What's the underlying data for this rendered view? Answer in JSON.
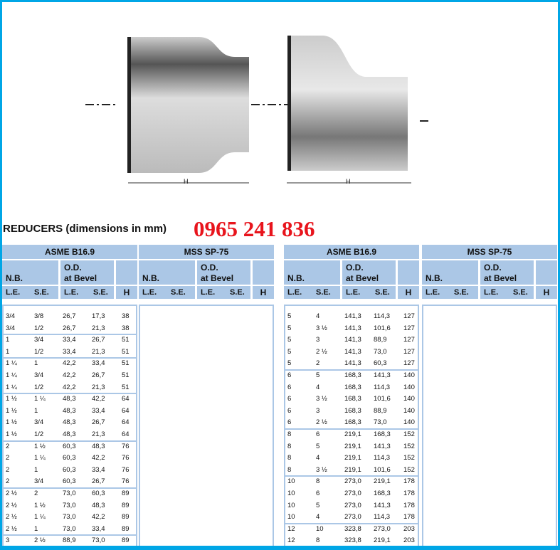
{
  "title": "REDUCERS (dimensions in mm)",
  "watermark": "0965 241 836",
  "figure_label_h": "H",
  "headers": {
    "asme": "ASME B16.9",
    "mss": "MSS SP-75",
    "nb": "N.B.",
    "od1": "O.D.",
    "od2": "at Bevel",
    "le": "L.E.",
    "se": "S.E.",
    "h": "H"
  },
  "left_groups": [
    [
      [
        "3/4",
        "3/8",
        "26,7",
        "17,3",
        "38"
      ],
      [
        "3/4",
        "1/2",
        "26,7",
        "21,3",
        "38"
      ]
    ],
    [
      [
        "1",
        "3/4",
        "33,4",
        "26,7",
        "51"
      ],
      [
        "1",
        "1/2",
        "33,4",
        "21,3",
        "51"
      ]
    ],
    [
      [
        "1 ¼",
        "1",
        "42,2",
        "33,4",
        "51"
      ],
      [
        "1 ¼",
        "3/4",
        "42,2",
        "26,7",
        "51"
      ],
      [
        "1 ¼",
        "1/2",
        "42,2",
        "21,3",
        "51"
      ]
    ],
    [
      [
        "1 ½",
        "1 ¼",
        "48,3",
        "42,2",
        "64"
      ],
      [
        "1 ½",
        "1",
        "48,3",
        "33,4",
        "64"
      ],
      [
        "1 ½",
        "3/4",
        "48,3",
        "26,7",
        "64"
      ],
      [
        "1 ½",
        "1/2",
        "48,3",
        "21,3",
        "64"
      ]
    ],
    [
      [
        "2",
        "1 ½",
        "60,3",
        "48,3",
        "76"
      ],
      [
        "2",
        "1 ¼",
        "60,3",
        "42,2",
        "76"
      ],
      [
        "2",
        "1",
        "60,3",
        "33,4",
        "76"
      ],
      [
        "2",
        "3/4",
        "60,3",
        "26,7",
        "76"
      ]
    ],
    [
      [
        "2 ½",
        "2",
        "73,0",
        "60,3",
        "89"
      ],
      [
        "2 ½",
        "1 ½",
        "73,0",
        "48,3",
        "89"
      ],
      [
        "2 ½",
        "1 ¼",
        "73,0",
        "42,2",
        "89"
      ],
      [
        "2 ½",
        "1",
        "73,0",
        "33,4",
        "89"
      ]
    ],
    [
      [
        "3",
        "2 ½",
        "88,9",
        "73,0",
        "89"
      ]
    ]
  ],
  "right_groups": [
    [
      [
        "5",
        "4",
        "141,3",
        "114,3",
        "127"
      ],
      [
        "5",
        "3 ½",
        "141,3",
        "101,6",
        "127"
      ],
      [
        "5",
        "3",
        "141,3",
        "88,9",
        "127"
      ],
      [
        "5",
        "2 ½",
        "141,3",
        "73,0",
        "127"
      ],
      [
        "5",
        "2",
        "141,3",
        "60,3",
        "127"
      ]
    ],
    [
      [
        "6",
        "5",
        "168,3",
        "141,3",
        "140"
      ],
      [
        "6",
        "4",
        "168,3",
        "114,3",
        "140"
      ],
      [
        "6",
        "3 ½",
        "168,3",
        "101,6",
        "140"
      ],
      [
        "6",
        "3",
        "168,3",
        "88,9",
        "140"
      ],
      [
        "6",
        "2 ½",
        "168,3",
        "73,0",
        "140"
      ]
    ],
    [
      [
        "8",
        "6",
        "219,1",
        "168,3",
        "152"
      ],
      [
        "8",
        "5",
        "219,1",
        "141,3",
        "152"
      ],
      [
        "8",
        "4",
        "219,1",
        "114,3",
        "152"
      ],
      [
        "8",
        "3 ½",
        "219,1",
        "101,6",
        "152"
      ]
    ],
    [
      [
        "10",
        "8",
        "273,0",
        "219,1",
        "178"
      ],
      [
        "10",
        "6",
        "273,0",
        "168,3",
        "178"
      ],
      [
        "10",
        "5",
        "273,0",
        "141,3",
        "178"
      ],
      [
        "10",
        "4",
        "273,0",
        "114,3",
        "178"
      ]
    ],
    [
      [
        "12",
        "10",
        "323,8",
        "273,0",
        "203"
      ],
      [
        "12",
        "8",
        "323,8",
        "219,1",
        "203"
      ]
    ]
  ]
}
